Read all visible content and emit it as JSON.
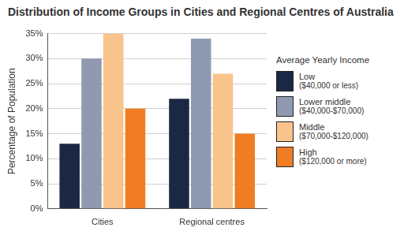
{
  "chart_data": {
    "type": "bar",
    "title": "Distribution of Income Groups in Cities and Regional Centres of Australia",
    "y_label": "Percentage of Population",
    "categories": [
      "Cities",
      "Regional centres"
    ],
    "series": [
      {
        "name": "Low ($40,000 or less)",
        "color": "#1b2845",
        "values": [
          13,
          22
        ]
      },
      {
        "name": "Lower middle ($40,000-$70,000)",
        "color": "#8f9ab2",
        "values": [
          30,
          34
        ]
      },
      {
        "name": "Middle ($70,000-$120,000)",
        "color": "#f8c48c",
        "values": [
          35,
          27
        ]
      },
      {
        "name": "High ($120,000 or more)",
        "color": "#f07c24",
        "values": [
          20,
          15
        ]
      }
    ],
    "ylim": [
      0,
      35
    ],
    "yticks": [
      {
        "value": 0,
        "label": "0%"
      },
      {
        "value": 5,
        "label": "5%"
      },
      {
        "value": 10,
        "label": "10%"
      },
      {
        "value": 15,
        "label": "15%"
      },
      {
        "value": 20,
        "label": "20%"
      },
      {
        "value": 25,
        "label": "25%"
      },
      {
        "value": 30,
        "label": "30%"
      },
      {
        "value": 35,
        "label": "35%"
      }
    ],
    "grid": true,
    "legend": "right",
    "legend_title": "Average Yearly Income"
  }
}
